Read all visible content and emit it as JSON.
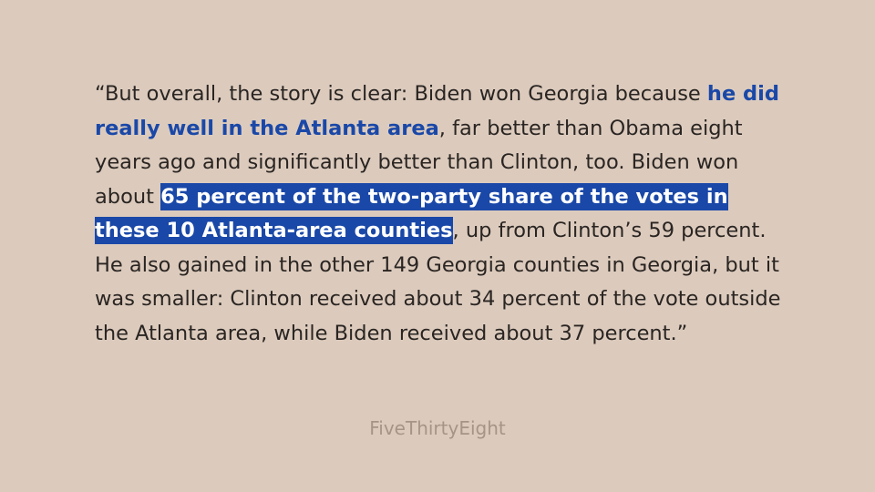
{
  "quote": {
    "seg1": "“But overall, the story is clear: Biden won Georgia because ",
    "link_text": "he did really well in the Atlanta area",
    "seg2": ", far better than Obama eight years ago and significantly better than Clinton, too. Biden won about ",
    "highlight_text": "65 percent of the two-party share of the votes in these 10 Atlanta-area counties",
    "seg3": ", up from Clinton’s 59 percent. He also gained in the other 149 Georgia counties in Georgia, but it was smaller: Clinton received about 34 percent of the vote outside the Atlanta area, while Biden received about 37 percent.”"
  },
  "source": "FiveThirtyEight",
  "colors": {
    "background": "#dccbbd",
    "text": "#2a2522",
    "accent": "#1a48a8",
    "source": "#a69486"
  }
}
